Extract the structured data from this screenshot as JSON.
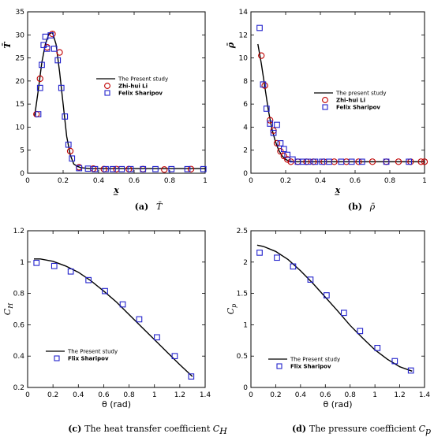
{
  "chart_data": [
    {
      "id": "a",
      "type": "line",
      "caption_label": "(a)",
      "caption_text": "T̄",
      "xlabel": "x̲",
      "ylabel": "T̄",
      "xlim": [
        0,
        1
      ],
      "ylim": [
        0,
        35
      ],
      "xticks": [
        0,
        0.2,
        0.4,
        0.6,
        0.8,
        1
      ],
      "xtick_labels": [
        "0",
        "0.2",
        "0.4",
        "0.6",
        "0.8",
        "1"
      ],
      "yticks": [
        0,
        5,
        10,
        15,
        20,
        25,
        30,
        35
      ],
      "ytick_labels": [
        "0",
        "5",
        "10",
        "15",
        "20",
        "25",
        "30",
        "35"
      ],
      "legend": {
        "position": "center-right",
        "entries": [
          "The Present study",
          "Zhi-hui Li",
          "Felix Sharipov"
        ]
      },
      "series": [
        {
          "name": "The Present study",
          "style": "line",
          "color": "#000000",
          "x": [
            0.04,
            0.06,
            0.08,
            0.1,
            0.12,
            0.14,
            0.16,
            0.18,
            0.2,
            0.22,
            0.24,
            0.26,
            0.28,
            0.3,
            0.35,
            0.4,
            0.5,
            0.6,
            0.8,
            1.0
          ],
          "y": [
            12.5,
            18,
            24,
            28,
            30.2,
            30.5,
            28,
            22,
            15,
            8,
            4,
            2,
            1.5,
            1.2,
            1.0,
            1.0,
            1.0,
            1.0,
            1.0,
            1.0
          ]
        },
        {
          "name": "Zhi-hui Li",
          "style": "circle",
          "color": "#c00000",
          "x": [
            0.05,
            0.07,
            0.11,
            0.14,
            0.18,
            0.24,
            0.29,
            0.37,
            0.43,
            0.5,
            0.57,
            0.65,
            0.77,
            0.92
          ],
          "y": [
            12.8,
            20.5,
            27.3,
            30.2,
            26.2,
            4.8,
            1.3,
            1.0,
            0.9,
            0.9,
            0.9,
            0.9,
            0.8,
            0.9
          ]
        },
        {
          "name": "Felix Sharipov",
          "style": "square",
          "color": "#2222cc",
          "x": [
            0.06,
            0.07,
            0.08,
            0.09,
            0.1,
            0.11,
            0.13,
            0.15,
            0.17,
            0.19,
            0.21,
            0.23,
            0.25,
            0.29,
            0.34,
            0.38,
            0.44,
            0.48,
            0.53,
            0.58,
            0.65,
            0.72,
            0.81,
            0.9,
            0.99
          ],
          "y": [
            12.8,
            18.5,
            23.5,
            27.8,
            29.6,
            27.0,
            29.9,
            27.0,
            24.5,
            18.5,
            12.3,
            6.2,
            3.2,
            1.1,
            1.0,
            0.9,
            0.9,
            0.9,
            0.9,
            0.9,
            0.9,
            0.9,
            0.9,
            0.9,
            0.9
          ]
        }
      ]
    },
    {
      "id": "b",
      "type": "line",
      "caption_label": "(b)",
      "caption_text": "ρ̄",
      "xlabel": "x̲",
      "ylabel": "ρ̄",
      "xlim": [
        0,
        1
      ],
      "ylim": [
        0,
        14
      ],
      "xticks": [
        0,
        0.2,
        0.4,
        0.6,
        0.8,
        1
      ],
      "xtick_labels": [
        "0",
        "0.2",
        "0.4",
        "0.6",
        "0.8",
        "1"
      ],
      "yticks": [
        0,
        2,
        4,
        6,
        8,
        10,
        12,
        14
      ],
      "ytick_labels": [
        "0",
        "2",
        "4",
        "6",
        "8",
        "10",
        "12",
        "14"
      ],
      "legend": {
        "position": "center-right",
        "entries": [
          "The present study",
          "Zhi-hui Li",
          "Felix Sharipov"
        ]
      },
      "series": [
        {
          "name": "The present study",
          "style": "line",
          "color": "#000000",
          "x": [
            0.04,
            0.06,
            0.08,
            0.1,
            0.12,
            0.14,
            0.16,
            0.18,
            0.2,
            0.22,
            0.25,
            0.3,
            0.4,
            0.6,
            0.8,
            1.0
          ],
          "y": [
            11.2,
            9.5,
            7.5,
            5.5,
            3.9,
            2.8,
            2.0,
            1.5,
            1.2,
            1.05,
            1.0,
            1.0,
            1.0,
            1.0,
            1.0,
            1.0
          ]
        },
        {
          "name": "Zhi-hui Li",
          "style": "circle",
          "color": "#c00000",
          "x": [
            0.06,
            0.08,
            0.11,
            0.13,
            0.15,
            0.17,
            0.19,
            0.21,
            0.23,
            0.27,
            0.32,
            0.36,
            0.42,
            0.48,
            0.55,
            0.62,
            0.7,
            0.78,
            0.85,
            0.92,
            0.98,
            1.0
          ],
          "y": [
            10.2,
            7.6,
            4.6,
            3.7,
            2.6,
            1.9,
            1.5,
            1.2,
            1.0,
            1.0,
            1.0,
            1.0,
            1.0,
            1.0,
            1.0,
            1.0,
            1.0,
            1.0,
            1.0,
            1.0,
            1.0,
            1.0
          ]
        },
        {
          "name": "Felix Sharipov",
          "style": "square",
          "color": "#2222cc",
          "x": [
            0.05,
            0.07,
            0.09,
            0.11,
            0.13,
            0.15,
            0.17,
            0.19,
            0.21,
            0.24,
            0.27,
            0.3,
            0.33,
            0.37,
            0.41,
            0.45,
            0.52,
            0.58,
            0.64,
            0.78,
            0.91
          ],
          "y": [
            12.6,
            7.7,
            5.6,
            4.3,
            3.5,
            4.2,
            2.6,
            2.1,
            1.6,
            1.2,
            1.0,
            1.0,
            1.0,
            1.0,
            1.0,
            1.0,
            1.0,
            1.0,
            1.0,
            1.0,
            1.0
          ]
        }
      ]
    },
    {
      "id": "c",
      "type": "line",
      "caption_label": "(c)",
      "caption_text": "The heat transfer coefficient",
      "caption_symbol": "C",
      "caption_sub": "H",
      "xlabel": "θ (rad)",
      "ylabel": "C",
      "ylabel_sub": "H",
      "xlim": [
        0,
        1.4
      ],
      "ylim": [
        0.2,
        1.2
      ],
      "xticks": [
        0,
        0.2,
        0.4,
        0.6,
        0.8,
        1,
        1.2,
        1.4
      ],
      "xtick_labels": [
        "0",
        "0.2",
        "0.4",
        "0.6",
        "0.8",
        "1",
        "1.2",
        "1.4"
      ],
      "yticks": [
        0.2,
        0.4,
        0.6,
        0.8,
        1,
        1.2
      ],
      "ytick_labels": [
        "0.2",
        "0.4",
        "0.6",
        "0.8",
        "1",
        "1.2"
      ],
      "legend": {
        "position": "bottom-left",
        "entries": [
          "The Present study",
          "Flix Sharipov"
        ]
      },
      "series": [
        {
          "name": "The Present study",
          "style": "line",
          "color": "#000000",
          "x": [
            0.05,
            0.1,
            0.2,
            0.3,
            0.4,
            0.5,
            0.6,
            0.7,
            0.8,
            0.9,
            1.0,
            1.1,
            1.2,
            1.3
          ],
          "y": [
            1.02,
            1.02,
            1.005,
            0.975,
            0.935,
            0.88,
            0.815,
            0.745,
            0.665,
            0.585,
            0.505,
            0.425,
            0.345,
            0.27
          ]
        },
        {
          "name": "Flix Sharipov",
          "style": "square",
          "color": "#2222cc",
          "x": [
            0.07,
            0.21,
            0.34,
            0.48,
            0.61,
            0.75,
            0.88,
            1.02,
            1.16,
            1.29
          ],
          "y": [
            0.995,
            0.975,
            0.94,
            0.885,
            0.815,
            0.73,
            0.635,
            0.52,
            0.4,
            0.27
          ]
        }
      ]
    },
    {
      "id": "d",
      "type": "line",
      "caption_label": "(d)",
      "caption_text": "The pressure coefficient",
      "caption_symbol": "C",
      "caption_sub": "p",
      "xlabel": "θ (rad)",
      "ylabel": "C",
      "ylabel_sub": "p",
      "xlim": [
        0,
        1.4
      ],
      "ylim": [
        0,
        2.5
      ],
      "xticks": [
        0,
        0.2,
        0.4,
        0.6,
        0.8,
        1,
        1.2,
        1.4
      ],
      "xtick_labels": [
        "0",
        "0.2",
        "0.4",
        "0.6",
        "0.8",
        "1",
        "1.2",
        "1.4"
      ],
      "yticks": [
        0,
        0.5,
        1,
        1.5,
        2,
        2.5
      ],
      "ytick_labels": [
        "0",
        "0.5",
        "1",
        "1.5",
        "2",
        "2.5"
      ],
      "legend": {
        "position": "bottom-left",
        "entries": [
          "The Present study",
          "Flix Sharipov"
        ]
      },
      "series": [
        {
          "name": "The Present study",
          "style": "line",
          "color": "#000000",
          "x": [
            0.05,
            0.1,
            0.2,
            0.3,
            0.4,
            0.5,
            0.6,
            0.7,
            0.8,
            0.9,
            1.0,
            1.1,
            1.2,
            1.3
          ],
          "y": [
            2.27,
            2.25,
            2.17,
            2.04,
            1.86,
            1.66,
            1.44,
            1.22,
            0.99,
            0.79,
            0.6,
            0.45,
            0.33,
            0.26
          ]
        },
        {
          "name": "Flix Sharipov",
          "style": "square",
          "color": "#2222cc",
          "x": [
            0.07,
            0.21,
            0.34,
            0.48,
            0.61,
            0.75,
            0.88,
            1.02,
            1.16,
            1.29
          ],
          "y": [
            2.15,
            2.07,
            1.93,
            1.72,
            1.47,
            1.19,
            0.9,
            0.63,
            0.42,
            0.27
          ]
        }
      ]
    }
  ]
}
